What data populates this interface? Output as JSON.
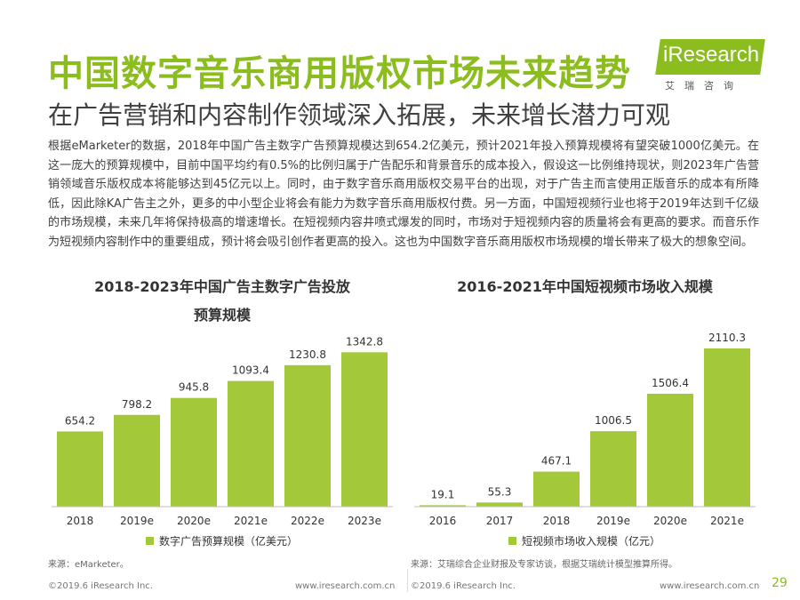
{
  "header": {
    "title": "中国数字音乐商用版权市场未来趋势",
    "subtitle": "在广告营销和内容制作领域深入拓展，未来增长潜力可观"
  },
  "logo": {
    "brand": "iResearch",
    "sub": "艾瑞咨询"
  },
  "body_text": "根据eMarketer的数据，2018年中国广告主数字广告预算规模达到654.2亿美元，预计2021年投入预算规模将有望突破1000亿美元。在这一庞大的预算规模中，目前中国平均约有0.5%的比例归属于广告配乐和背景音乐的成本投入，假设这一比例维持现状，则2023年广告营销领域音乐版权成本将能够达到45亿元以上。同时，由于数字音乐商用版权交易平台的出现，对于广告主而言使用正版音乐的成本有所降低，因此除KA广告主之外，更多的中小型企业将会有能力为数字音乐商用版权付费。另一方面，中国短视频行业也将于2019年达到千亿级的市场规模，未来几年将保持极高的增速增长。在短视频内容井喷式爆发的同时，市场对于短视频内容的质量将会有更高的要求。而音乐作为短视频内容制作中的重要组成，预计将会吸引创作者更高的投入。这也为中国数字音乐商用版权市场规模的增长带来了极大的想象空间。",
  "chart_data": [
    {
      "type": "bar",
      "title_line1": "2018-2023年中国广告主数字广告投放",
      "title_line2": "预算规模",
      "categories": [
        "2018",
        "2019e",
        "2020e",
        "2021e",
        "2022e",
        "2023e"
      ],
      "series": [
        {
          "name": "数字广告预算规模（亿美元）",
          "values": [
            654.2,
            798.2,
            945.8,
            1093.4,
            1230.8,
            1342.8
          ]
        }
      ],
      "ylim": [
        0,
        1500
      ],
      "legend": "bottom",
      "grid": false,
      "color": "#a3c93a"
    },
    {
      "type": "bar",
      "title_line1": "2016-2021年中国短视频市场收入规模",
      "categories": [
        "2016",
        "2017",
        "2018",
        "2019e",
        "2020e",
        "2021e"
      ],
      "series": [
        {
          "name": "短视频市场收入规模（亿元）",
          "values": [
            19.1,
            55.3,
            467.1,
            1006.5,
            1506.4,
            2110.3
          ]
        }
      ],
      "ylim": [
        0,
        2300
      ],
      "legend": "bottom",
      "grid": false,
      "color": "#a3c93a"
    }
  ],
  "sources": {
    "left": "来源：eMarketer。",
    "right": "来源：艾瑞综合企业财报及专家访谈，根据艾瑞统计模型推算所得。"
  },
  "footer": {
    "copyright_left": "©2019.6 iResearch Inc.",
    "url_left": "www.iresearch.com.cn",
    "copyright_right": "©2019.6 iResearch Inc.",
    "url_right": "www.iresearch.com.cn",
    "page": "29"
  }
}
